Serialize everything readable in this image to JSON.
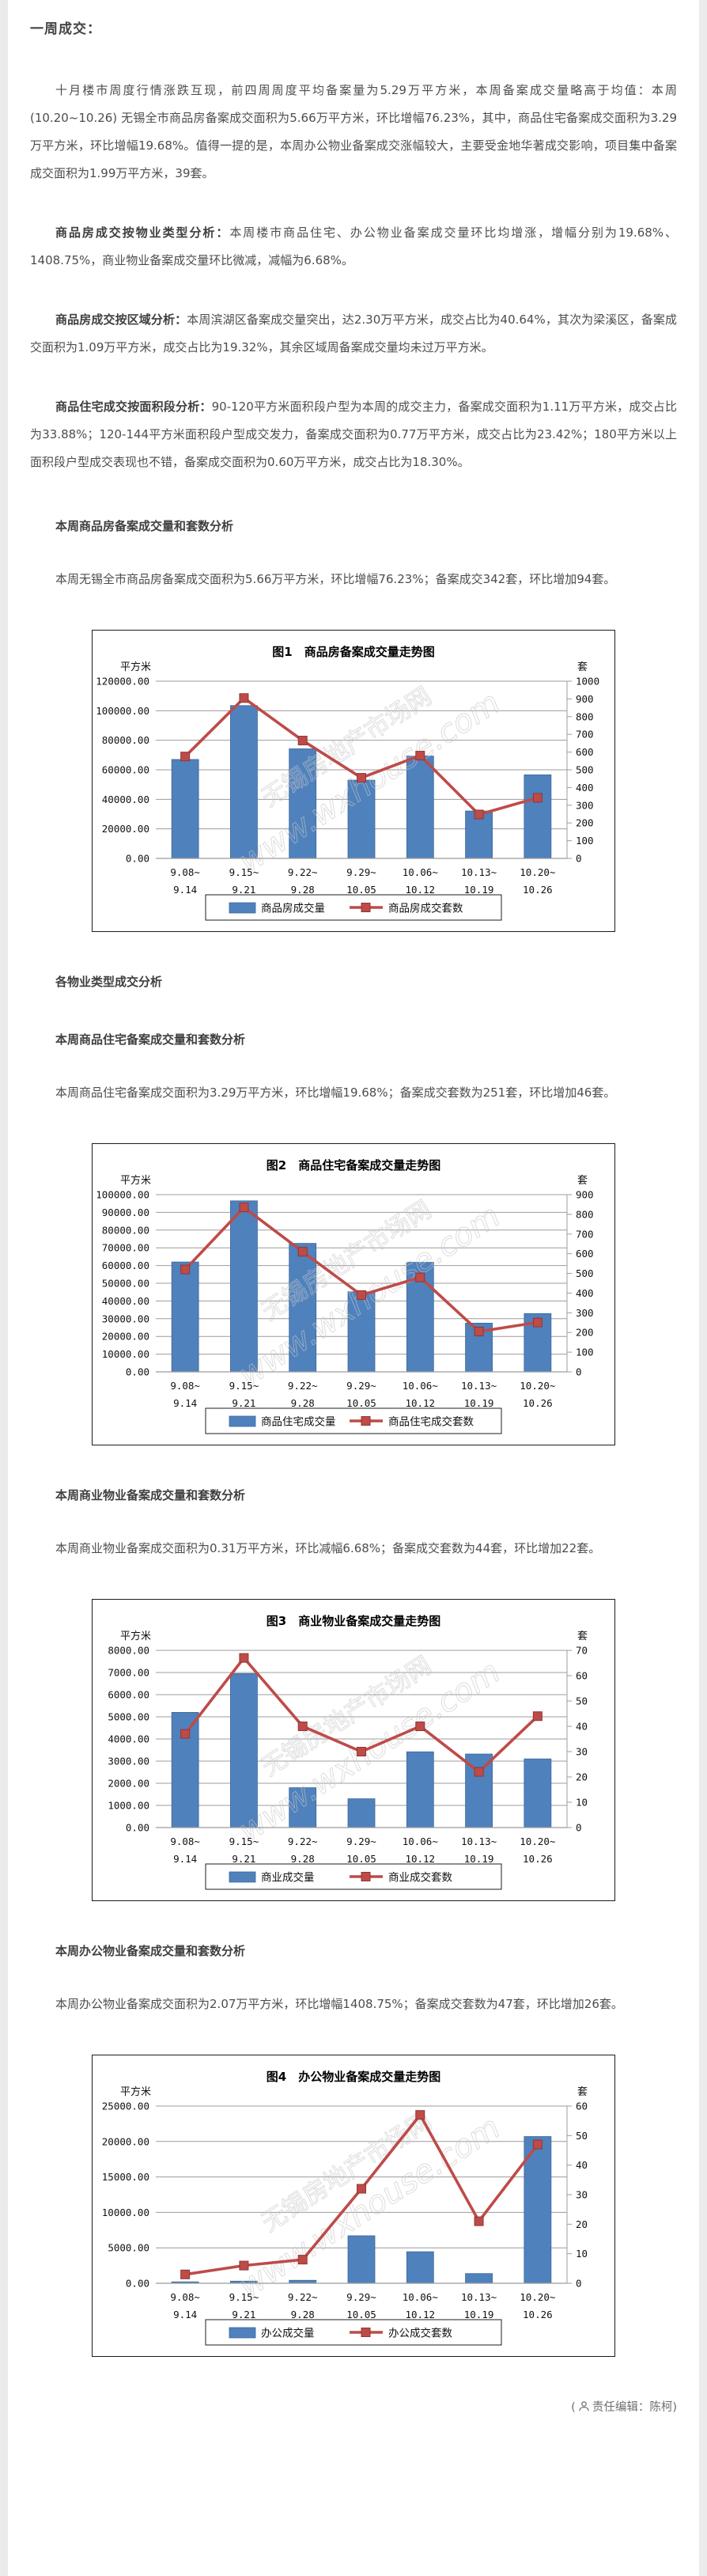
{
  "doc": {
    "h1": "一周成交：",
    "p1": "十月楼市周度行情涨跌互现，前四周周度平均备案量为5.29万平方米，本周备案成交量略高于均值：本周 (10.20~10.26) 无锡全市商品房备案成交面积为5.66万平方米，环比增幅76.23%，其中，商品住宅备案成交面积为3.29万平方米，环比增幅19.68%。值得一提的是，本周办公物业备案成交涨幅较大，主要受金地华著成交影响，项目集中备案成交面积为1.99万平方米，39套。",
    "s1_lead": "商品房成交按物业类型分析：",
    "s1_text": "本周楼市商品住宅、办公物业备案成交量环比均增涨，增幅分别为19.68%、1408.75%，商业物业备案成交量环比微减，减幅为6.68%。",
    "s2_lead": "商品房成交按区域分析：",
    "s2_text": "本周滨湖区备案成交量突出，达2.30万平方米，成交占比为40.64%，其次为梁溪区，备案成交面积为1.09万平方米，成交占比为19.32%，其余区域周备案成交量均未过万平方米。",
    "s3_lead": "商品住宅成交按面积段分析：",
    "s3_text": "90-120平方米面积段户型为本周的成交主力，备案成交面积为1.11万平方米，成交占比为33.88%；120-144平方米面积段户型成交发力，备案成交面积为0.77万平方米，成交占比为23.42%；180平方米以上面积段户型成交表现也不错，备案成交面积为0.60万平方米，成交占比为18.30%。",
    "h2": "本周商品房备案成交量和套数分析",
    "p5": "本周无锡全市商品房备案成交面积为5.66万平方米，环比增幅76.23%；备案成交342套，环比增加94套。",
    "h3": "各物业类型成交分析",
    "h4": "本周商品住宅备案成交量和套数分析",
    "p6": "本周商品住宅备案成交面积为3.29万平方米，环比增幅19.68%；备案成交套数为251套，环比增加46套。",
    "h5": "本周商业物业备案成交量和套数分析",
    "p7": "本周商业物业备案成交面积为0.31万平方米，环比减幅6.68%；备案成交套数为44套，环比增加22套。",
    "h6": "本周办公物业备案成交量和套数分析",
    "p8": "本周办公物业备案成交面积为2.07万平方米，环比增幅1408.75%；备案成交套数为47套，环比增加26套。",
    "footer_prefix": "(",
    "footer_text": "责任编辑：陈柯)"
  },
  "colors": {
    "bar": "#4f81bd",
    "bar_border": "#3c6899",
    "line": "#be4b48",
    "line_border": "#8e3734",
    "grid": "#9c9c9c",
    "watermark": "#c6c6c6"
  },
  "chart_data": [
    {
      "type": "bar",
      "title": "图1　商品房备案成交量走势图",
      "left_unit": "平方米",
      "right_unit": "套",
      "categories": [
        [
          "9.08~",
          "9.14"
        ],
        [
          "9.15~",
          "9.21"
        ],
        [
          "9.22~",
          "9.28"
        ],
        [
          "9.29~",
          "10.05"
        ],
        [
          "10.06~",
          "10.12"
        ],
        [
          "10.13~",
          "10.19"
        ],
        [
          "10.20~",
          "10.26"
        ]
      ],
      "series": [
        {
          "name": "商品房成交量",
          "type": "bar",
          "axis": "left",
          "values": [
            67000,
            103500,
            74200,
            53000,
            69300,
            32100,
            56600
          ]
        },
        {
          "name": "商品房成交套数",
          "type": "line",
          "axis": "right",
          "values": [
            575,
            905,
            665,
            455,
            580,
            248,
            342
          ]
        }
      ],
      "left_axis": {
        "min": 0,
        "max": 120000,
        "step": 20000,
        "decimals": 2
      },
      "right_axis": {
        "min": 0,
        "max": 1000,
        "step": 100
      },
      "grid": true,
      "legend_position": "bottom",
      "watermark_cn": "无锡房地产市场网",
      "watermark_en": "www.wxhouse.com"
    },
    {
      "type": "bar",
      "title": "图2　商品住宅备案成交量走势图",
      "left_unit": "平方米",
      "right_unit": "套",
      "categories": [
        [
          "9.08~",
          "9.14"
        ],
        [
          "9.15~",
          "9.21"
        ],
        [
          "9.22~",
          "9.28"
        ],
        [
          "9.29~",
          "10.05"
        ],
        [
          "10.06~",
          "10.12"
        ],
        [
          "10.13~",
          "10.19"
        ],
        [
          "10.20~",
          "10.26"
        ]
      ],
      "series": [
        {
          "name": "商品住宅成交量",
          "type": "bar",
          "axis": "left",
          "values": [
            62000,
            96500,
            72500,
            45200,
            61800,
            27500,
            32900
          ]
        },
        {
          "name": "商品住宅成交套数",
          "type": "line",
          "axis": "right",
          "values": [
            520,
            835,
            610,
            390,
            480,
            205,
            251
          ]
        }
      ],
      "left_axis": {
        "min": 0,
        "max": 100000,
        "step": 10000,
        "decimals": 2
      },
      "right_axis": {
        "min": 0,
        "max": 900,
        "step": 100
      },
      "grid": true,
      "legend_position": "bottom",
      "watermark_cn": "无锡房地产市场网",
      "watermark_en": "www.wxhouse.com"
    },
    {
      "type": "bar",
      "title": "图3　商业物业备案成交量走势图",
      "left_unit": "平方米",
      "right_unit": "套",
      "categories": [
        [
          "9.08~",
          "9.14"
        ],
        [
          "9.15~",
          "9.21"
        ],
        [
          "9.22~",
          "9.28"
        ],
        [
          "9.29~",
          "10.05"
        ],
        [
          "10.06~",
          "10.12"
        ],
        [
          "10.13~",
          "10.19"
        ],
        [
          "10.20~",
          "10.26"
        ]
      ],
      "series": [
        {
          "name": "商业成交量",
          "type": "bar",
          "axis": "left",
          "values": [
            5200,
            6950,
            1800,
            1300,
            3420,
            3320,
            3100
          ]
        },
        {
          "name": "商业成交套数",
          "type": "line",
          "axis": "right",
          "values": [
            37,
            67,
            40,
            30,
            40,
            22,
            44
          ]
        }
      ],
      "left_axis": {
        "min": 0,
        "max": 8000,
        "step": 1000,
        "decimals": 2
      },
      "right_axis": {
        "min": 0,
        "max": 70,
        "step": 10
      },
      "grid": true,
      "legend_position": "bottom",
      "watermark_cn": "无锡房地产市场网",
      "watermark_en": "www.wxhouse.com"
    },
    {
      "type": "bar",
      "title": "图4　办公物业备案成交量走势图",
      "left_unit": "平方米",
      "right_unit": "套",
      "categories": [
        [
          "9.08~",
          "9.14"
        ],
        [
          "9.15~",
          "9.21"
        ],
        [
          "9.22~",
          "9.28"
        ],
        [
          "9.29~",
          "10.05"
        ],
        [
          "10.06~",
          "10.12"
        ],
        [
          "10.13~",
          "10.19"
        ],
        [
          "10.20~",
          "10.26"
        ]
      ],
      "series": [
        {
          "name": "办公成交量",
          "type": "bar",
          "axis": "left",
          "values": [
            200,
            300,
            420,
            6700,
            4450,
            1370,
            20700
          ]
        },
        {
          "name": "办公成交套数",
          "type": "line",
          "axis": "right",
          "values": [
            3,
            6,
            8,
            32,
            57,
            21,
            47
          ]
        }
      ],
      "left_axis": {
        "min": 0,
        "max": 25000,
        "step": 5000,
        "decimals": 2
      },
      "right_axis": {
        "min": 0,
        "max": 60,
        "step": 10
      },
      "grid": true,
      "legend_position": "bottom",
      "watermark_cn": "无锡房地产市场网",
      "watermark_en": "www.wxhouse.com"
    }
  ]
}
